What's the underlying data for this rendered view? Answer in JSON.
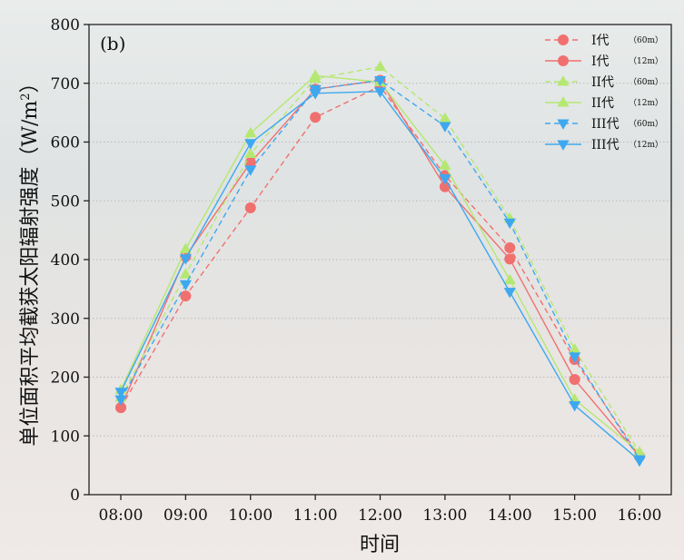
{
  "chart_data": {
    "type": "line",
    "panel_label": "(b)",
    "xlabel": "时间",
    "ylabel_main": "单位面积平均截获太阳辐射强度（W/m",
    "ylabel_sup": "2",
    "ylabel_end": "）",
    "categories": [
      "08:00",
      "09:00",
      "10:00",
      "11:00",
      "12:00",
      "13:00",
      "14:00",
      "15:00",
      "16:00"
    ],
    "ylim": [
      0,
      800
    ],
    "yticks": [
      0,
      100,
      200,
      300,
      400,
      500,
      600,
      700,
      800
    ],
    "grid": "horizontal-dotted",
    "legend_position": "top-right",
    "series": [
      {
        "name": "I代",
        "sub": "（60m）",
        "color": "#f07070",
        "dashed": true,
        "marker": "circle",
        "values": [
          148,
          338,
          488,
          642,
          695,
          543,
          420,
          230,
          65
        ]
      },
      {
        "name": "I代",
        "sub": "（12m）",
        "color": "#f07070",
        "dashed": false,
        "marker": "circle",
        "values": [
          148,
          405,
          565,
          690,
          705,
          524,
          401,
          196,
          65
        ]
      },
      {
        "name": "II代",
        "sub": "（60m）",
        "color": "#b4e870",
        "dashed": true,
        "marker": "triangle-up",
        "values": [
          165,
          375,
          580,
          708,
          728,
          640,
          470,
          247,
          72
        ]
      },
      {
        "name": "II代",
        "sub": "（12m）",
        "color": "#b4e870",
        "dashed": false,
        "marker": "triangle-up",
        "values": [
          178,
          418,
          615,
          713,
          702,
          560,
          365,
          162,
          72
        ]
      },
      {
        "name": "III代",
        "sub": "（60m）",
        "color": "#3da8f0",
        "dashed": true,
        "marker": "triangle-down",
        "values": [
          162,
          358,
          553,
          690,
          705,
          627,
          463,
          235,
          60
        ]
      },
      {
        "name": "III代",
        "sub": "（12m）",
        "color": "#3da8f0",
        "dashed": false,
        "marker": "triangle-down",
        "values": [
          175,
          402,
          598,
          683,
          686,
          538,
          345,
          152,
          58
        ]
      }
    ]
  }
}
